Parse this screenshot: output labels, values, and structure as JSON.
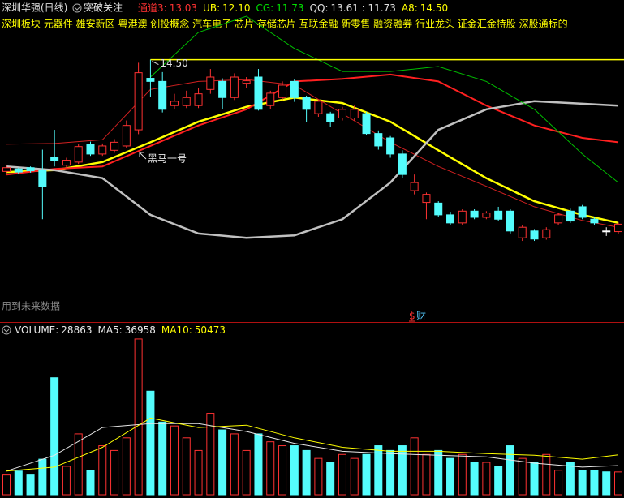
{
  "header": {
    "title": "深圳华强(日线)",
    "watch": "突破关注",
    "indicators": [
      {
        "label": "通道3:",
        "value": "13.03",
        "color": "#ff3232"
      },
      {
        "label": "UB:",
        "value": "12.10",
        "color": "#ffff00"
      },
      {
        "label": "CG:",
        "value": "11.73",
        "color": "#00e000"
      },
      {
        "label": "QQ:",
        "value": "13.61 : 11.73",
        "color": "#e0e0e0"
      },
      {
        "label": "A8:",
        "value": "14.50",
        "color": "#ffff00"
      }
    ]
  },
  "tags": "深圳板块 元器件 雄安新区 粤港澳 创投概念 汽车电子 芯片 存储芯片 互联金融 新零售 融资融券 行业龙头 证金汇金持股 深股通标的",
  "chart_data": [
    {
      "type": "candlestick",
      "up_color": "#ff3232",
      "down_color": "#54fcfc",
      "open": [
        12.7,
        12.74,
        12.76,
        12.72,
        12.92,
        12.8,
        12.85,
        13.13,
        12.98,
        13.04,
        13.11,
        13.37,
        14.2,
        14.15,
        13.76,
        13.76,
        13.76,
        14.02,
        14.15,
        13.89,
        14.12,
        14.22,
        13.76,
        13.89,
        14.15,
        13.89,
        13.63,
        13.63,
        13.56,
        13.56,
        13.63,
        13.31,
        13.24,
        12.98,
        12.39,
        12.2,
        12.19,
        12.0,
        11.87,
        12.06,
        11.96,
        12.06,
        12.06,
        11.63,
        11.74,
        11.63,
        11.87,
        12.06,
        12.13,
        11.93,
        11.74,
        11.73
      ],
      "high": [
        12.8,
        12.76,
        12.78,
        13.05,
        13.37,
        12.92,
        13.14,
        13.18,
        13.15,
        13.22,
        13.52,
        14.45,
        14.5,
        14.3,
        13.95,
        14.0,
        14.05,
        14.35,
        14.2,
        14.28,
        14.22,
        14.35,
        14.0,
        14.15,
        14.18,
        13.92,
        13.86,
        13.66,
        13.74,
        13.76,
        13.66,
        13.36,
        13.27,
        13.04,
        12.65,
        12.36,
        12.22,
        12.05,
        12.09,
        12.09,
        12.06,
        12.13,
        12.09,
        11.83,
        11.77,
        11.8,
        12.03,
        12.1,
        12.16,
        11.96,
        11.8,
        11.88
      ],
      "low": [
        12.66,
        12.66,
        12.68,
        11.93,
        12.78,
        12.76,
        12.82,
        12.95,
        12.95,
        13.0,
        13.08,
        13.3,
        13.9,
        13.65,
        13.7,
        13.72,
        13.72,
        13.95,
        13.7,
        13.85,
        14.05,
        13.68,
        13.7,
        13.85,
        13.82,
        13.5,
        13.58,
        13.42,
        13.52,
        13.52,
        13.28,
        13.05,
        12.92,
        12.6,
        12.33,
        11.93,
        11.96,
        11.84,
        11.84,
        11.93,
        11.93,
        11.9,
        11.7,
        11.58,
        11.58,
        11.6,
        11.84,
        11.87,
        11.93,
        11.84,
        11.66,
        11.7
      ],
      "close": [
        12.76,
        12.69,
        12.71,
        12.46,
        12.88,
        12.88,
        13.1,
        12.98,
        13.11,
        13.17,
        13.44,
        14.29,
        14.15,
        13.7,
        13.83,
        13.89,
        13.95,
        14.22,
        13.89,
        14.22,
        14.16,
        13.7,
        13.96,
        14.09,
        13.89,
        13.7,
        13.83,
        13.5,
        13.7,
        13.7,
        13.31,
        13.11,
        12.98,
        12.65,
        12.52,
        12.33,
        12.0,
        11.87,
        12.06,
        11.96,
        12.03,
        11.93,
        11.74,
        11.8,
        11.61,
        11.76,
        12.0,
        11.9,
        11.96,
        11.87,
        11.74,
        11.85
      ],
      "ylim": [
        10.3,
        15.2
      ],
      "lines": [
        {
          "color": "#ffff00",
          "x": [
            0,
            4,
            8,
            12,
            16,
            20,
            24,
            28,
            32,
            36,
            40,
            44,
            48,
            51
          ],
          "values": [
            12.69,
            12.72,
            12.85,
            13.17,
            13.5,
            13.74,
            13.89,
            13.8,
            13.5,
            13.04,
            12.59,
            12.22,
            12.0,
            11.87
          ]
        },
        {
          "color": "#ff2020",
          "x": [
            0,
            4,
            8,
            12,
            16,
            20,
            24,
            28,
            32,
            36,
            40,
            44,
            48,
            51
          ],
          "values": [
            12.65,
            12.74,
            12.78,
            13.11,
            13.44,
            13.7,
            14.15,
            14.19,
            14.26,
            14.15,
            13.76,
            13.44,
            13.24,
            13.17
          ]
        },
        {
          "color": "#d02020",
          "x": [
            0,
            4,
            8,
            12,
            16,
            20,
            24,
            28,
            32,
            36,
            40,
            44,
            48,
            51
          ],
          "values": [
            13.14,
            13.15,
            13.21,
            14.02,
            14.15,
            14.18,
            14.09,
            13.63,
            13.17,
            12.78,
            12.46,
            12.13,
            11.91,
            11.8
          ]
        },
        {
          "color": "#c0c0c0",
          "x": [
            0,
            4,
            8,
            12,
            16,
            20,
            24,
            28,
            32,
            36,
            40,
            44,
            48,
            51
          ],
          "values": [
            12.78,
            12.72,
            12.59,
            12.0,
            11.7,
            11.63,
            11.67,
            11.93,
            12.52,
            13.37,
            13.7,
            13.83,
            13.79,
            13.76
          ]
        },
        {
          "color": "#00c000",
          "x": [
            0,
            4,
            8,
            12,
            16,
            20,
            24,
            28,
            32,
            36,
            40,
            44,
            48,
            51
          ],
          "values": [
            null,
            null,
            null,
            14.22,
            14.94,
            15.2,
            14.68,
            14.31,
            14.31,
            14.39,
            14.15,
            13.7,
            12.98,
            12.52
          ]
        }
      ],
      "reference_line": {
        "value": 14.5,
        "label": "14.50",
        "color": "#ffff00"
      },
      "annotation": "黑马一号",
      "note": "用到未来数据",
      "marker": "财"
    },
    {
      "type": "bar",
      "title": "VOLUME:",
      "up_color": "#ff3232",
      "down_color": "#54fcfc",
      "values": [
        25000,
        30000,
        25000,
        45000,
        148000,
        36000,
        77000,
        31000,
        62000,
        56000,
        72000,
        197000,
        131000,
        92000,
        87000,
        72000,
        56000,
        103000,
        82000,
        77000,
        56000,
        77000,
        67000,
        62000,
        62000,
        56000,
        46000,
        41000,
        51000,
        46000,
        51000,
        62000,
        56000,
        62000,
        72000,
        51000,
        56000,
        46000,
        51000,
        41000,
        41000,
        36000,
        62000,
        46000,
        41000,
        51000,
        31000,
        41000,
        31000,
        31000,
        29000,
        28863
      ],
      "ylim": [
        0,
        200000
      ],
      "lines": [
        {
          "label": "MA5:",
          "color": "#e8e8e8",
          "x": [
            0,
            4,
            8,
            12,
            16,
            20,
            24,
            28,
            32,
            36,
            40,
            44,
            48,
            51
          ],
          "values": [
            30000,
            50000,
            85000,
            90000,
            90000,
            80000,
            65000,
            55000,
            52000,
            50000,
            48000,
            40000,
            35000,
            36958
          ]
        },
        {
          "label": "MA10:",
          "color": "#ffff00",
          "x": [
            0,
            4,
            8,
            12,
            16,
            20,
            24,
            28,
            32,
            36,
            40,
            44,
            48,
            51
          ],
          "values": [
            30000,
            35000,
            60000,
            97000,
            85000,
            88000,
            72000,
            60000,
            55000,
            55000,
            52000,
            50000,
            45000,
            50473
          ]
        }
      ]
    }
  ]
}
